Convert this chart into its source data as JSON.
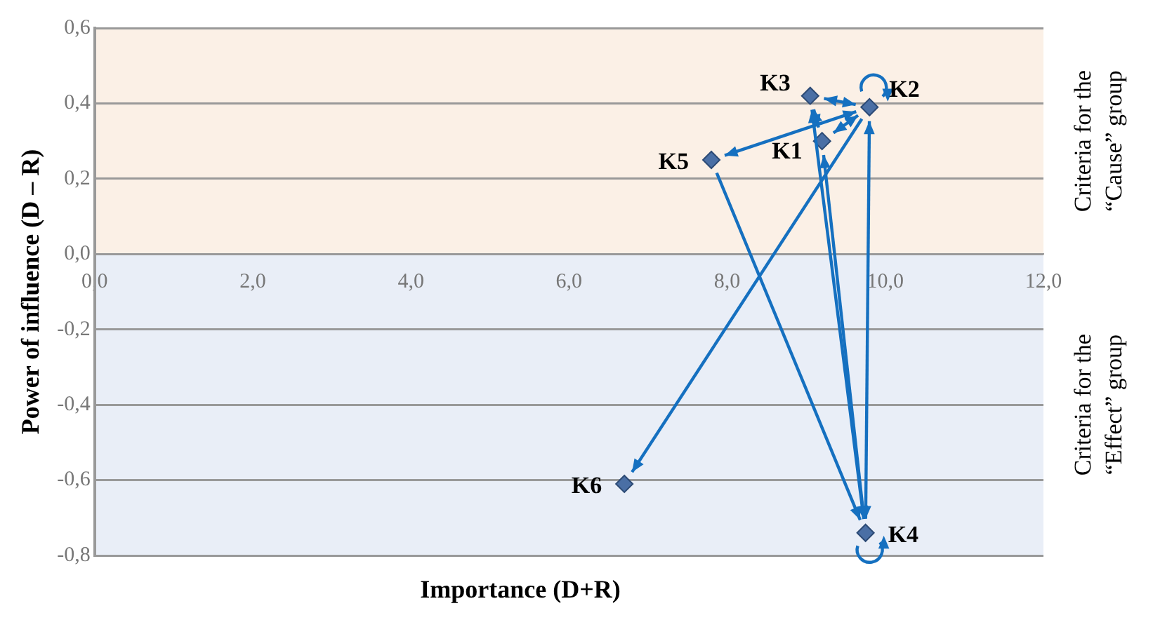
{
  "chart_data": {
    "type": "scatter",
    "xlabel": "Importance (D+R)",
    "ylabel": "Power of influence (D – R)",
    "series": [
      {
        "name": "K1",
        "color": "#4a6fa5",
        "x": [
          9.2
        ],
        "values": [
          0.3
        ]
      },
      {
        "name": "K2",
        "color": "#4a6fa5",
        "x": [
          9.8
        ],
        "values": [
          0.39
        ]
      },
      {
        "name": "K3",
        "color": "#4a6fa5",
        "x": [
          9.05
        ],
        "values": [
          0.42
        ]
      },
      {
        "name": "K4",
        "color": "#4a6fa5",
        "x": [
          9.75
        ],
        "values": [
          -0.74
        ]
      },
      {
        "name": "K5",
        "color": "#4a6fa5",
        "x": [
          7.8
        ],
        "values": [
          0.25
        ]
      },
      {
        "name": "K6",
        "color": "#4a6fa5",
        "x": [
          6.7
        ],
        "values": [
          -0.61
        ]
      }
    ],
    "xlim": [
      0,
      12
    ],
    "xticks": [
      {
        "value": 0,
        "label": "0,0"
      },
      {
        "value": 2,
        "label": "2,0"
      },
      {
        "value": 4,
        "label": "4,0"
      },
      {
        "value": 6,
        "label": "6,0"
      },
      {
        "value": 8,
        "label": "8,0"
      },
      {
        "value": 10,
        "label": "10,0"
      },
      {
        "value": 12,
        "label": "12,0"
      }
    ],
    "ylim": [
      -0.8,
      0.6
    ],
    "yticks": [
      {
        "value": -0.8,
        "label": "-0,8"
      },
      {
        "value": -0.6,
        "label": "-0,6"
      },
      {
        "value": -0.4,
        "label": "-0,4"
      },
      {
        "value": -0.2,
        "label": "-0,2"
      },
      {
        "value": 0,
        "label": "0,0"
      },
      {
        "value": 0.2,
        "label": "0,2"
      },
      {
        "value": 0.4,
        "label": "0,4"
      },
      {
        "value": 0.6,
        "label": "0,6"
      }
    ],
    "bands": [
      {
        "axis": "y",
        "from": 0,
        "to": 0.6,
        "label": "Criteria for the “Cause” group",
        "color": "#fbf0e6"
      },
      {
        "axis": "y",
        "from": -0.8,
        "to": 0,
        "label": "Criteria for the “Effect” group",
        "color": "#e9eef7"
      }
    ],
    "grid": "y",
    "legend": false,
    "marker": "diamond"
  }
}
